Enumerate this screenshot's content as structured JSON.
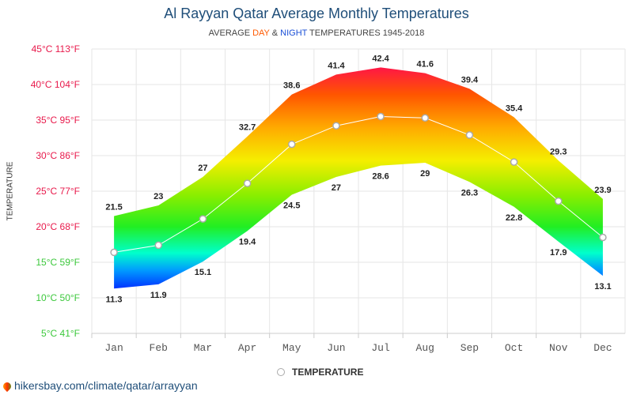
{
  "header": {
    "title": "Al Rayyan Qatar Average Monthly Temperatures",
    "subtitle_pre": "AVERAGE ",
    "subtitle_day": "DAY",
    "subtitle_amp": " & ",
    "subtitle_night": "NIGHT",
    "subtitle_post": " TEMPERATURES 1945-2018"
  },
  "footer": {
    "text": "hikersbay.com/climate/qatar/arrayyan"
  },
  "colors": {
    "title": "#1f4e79",
    "day": "#ff5a00",
    "night": "#1a4fd6",
    "mean_line": "#ffffff",
    "grid": "#e6e6e6"
  },
  "chart_data": {
    "type": "area",
    "title": "Al Rayyan Qatar Average Monthly Temperatures",
    "ylabel": "TEMPERATURE",
    "xlabel": "",
    "categories": [
      "Jan",
      "Feb",
      "Mar",
      "Apr",
      "May",
      "Jun",
      "Jul",
      "Aug",
      "Sep",
      "Oct",
      "Nov",
      "Dec"
    ],
    "ylim": [
      5,
      45
    ],
    "y_ticks": [
      {
        "c": 45,
        "label": "45°C 113°F",
        "color": "#e8194b"
      },
      {
        "c": 40,
        "label": "40°C 104°F",
        "color": "#e8194b"
      },
      {
        "c": 35,
        "label": "35°C 95°F",
        "color": "#e8194b"
      },
      {
        "c": 30,
        "label": "30°C 86°F",
        "color": "#e8194b"
      },
      {
        "c": 25,
        "label": "25°C 77°F",
        "color": "#e8194b"
      },
      {
        "c": 20,
        "label": "20°C 68°F",
        "color": "#e8194b"
      },
      {
        "c": 15,
        "label": "15°C 59°F",
        "color": "#3cc83c"
      },
      {
        "c": 10,
        "label": "10°C 50°F",
        "color": "#3cc83c"
      },
      {
        "c": 5,
        "label": "5°C 41°F",
        "color": "#3cc83c"
      }
    ],
    "series": [
      {
        "values": [
          21.5,
          23,
          27,
          32.7,
          38.6,
          41.4,
          42.4,
          41.6,
          39.4,
          35.4,
          29.3,
          23.9
        ]
      },
      {
        "values": [
          11.3,
          11.9,
          15.1,
          19.4,
          24.5,
          27,
          28.6,
          29,
          26.3,
          22.8,
          17.9,
          13.1
        ]
      },
      {
        "name": "TEMPERATURE",
        "values": [
          16.4,
          17.4,
          21.1,
          26.1,
          31.6,
          34.2,
          35.5,
          35.3,
          32.9,
          29.1,
          23.6,
          18.5
        ]
      }
    ],
    "legend": "bottom-center",
    "grid": true
  }
}
